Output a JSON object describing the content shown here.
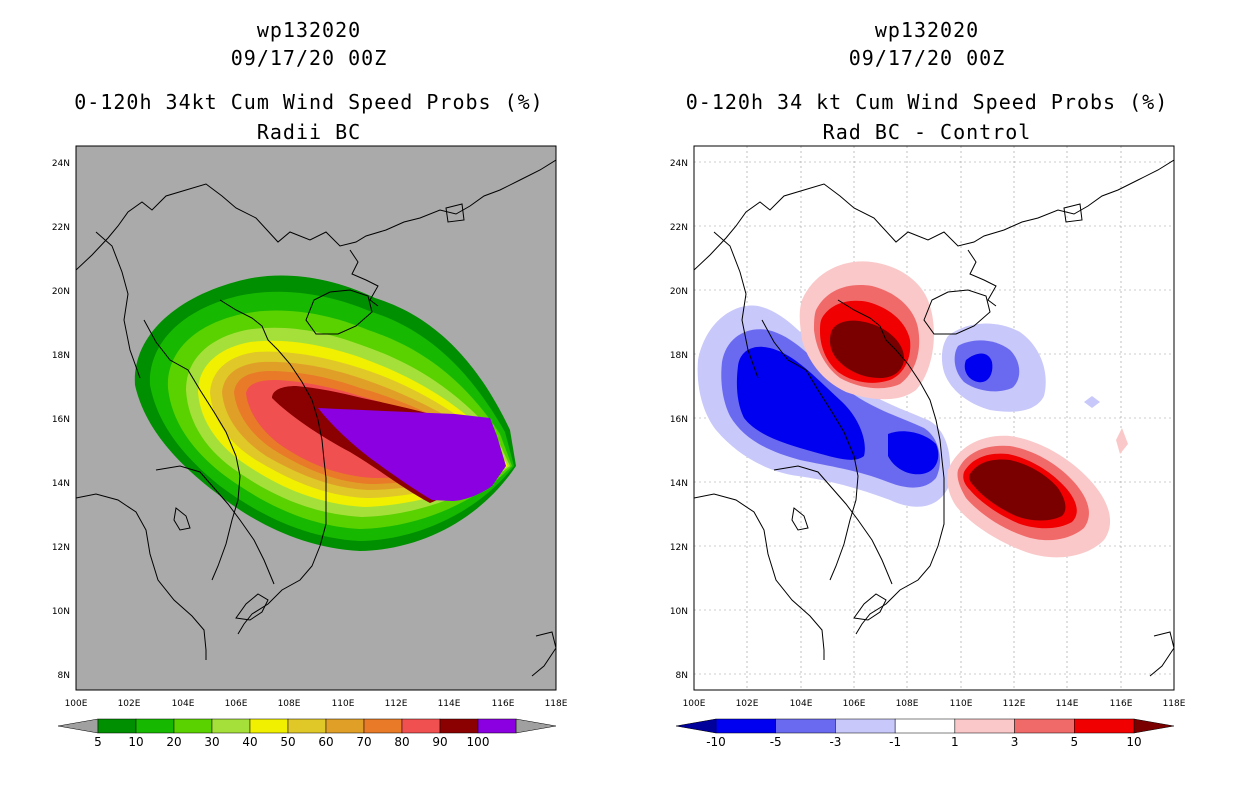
{
  "panels": [
    {
      "storm_id": "wp132020",
      "datetime": "09/17/20 00Z",
      "title": "0-120h 34kt Cum Wind Speed Probs (%)",
      "subtitle": "Radii BC",
      "colorbar": {
        "labels": [
          "5",
          "10",
          "20",
          "30",
          "40",
          "50",
          "60",
          "70",
          "80",
          "90",
          "100"
        ],
        "colors": [
          "#008f00",
          "#17b800",
          "#5ad200",
          "#a5e03a",
          "#f0f000",
          "#e0c828",
          "#e0a028",
          "#e87a28",
          "#f05050",
          "#8b0000",
          "#8a00e0"
        ],
        "under_color": "#a0a0a0",
        "over_color": "#a0a0a0"
      }
    },
    {
      "storm_id": "wp132020",
      "datetime": "09/17/20 00Z",
      "title": "0-120h 34 kt Cum Wind Speed Probs (%)",
      "subtitle": "Rad BC - Control",
      "colorbar": {
        "labels": [
          "-10",
          "-5",
          "-3",
          "-1",
          "1",
          "3",
          "5",
          "10"
        ],
        "colors": [
          "#0000f0",
          "#6a6af0",
          "#c8c8fa",
          "#ffffff",
          "#fac8c8",
          "#f06a6a",
          "#f00000"
        ],
        "under_color": "#00009a",
        "over_color": "#7a0000"
      }
    }
  ],
  "map": {
    "lon_labels": [
      "100E",
      "102E",
      "104E",
      "106E",
      "108E",
      "110E",
      "112E",
      "114E",
      "116E",
      "118E"
    ],
    "lat_labels": [
      "24N",
      "22N",
      "20N",
      "18N",
      "16N",
      "14N",
      "12N",
      "10N",
      "8N"
    ],
    "background_left": "#aaaaaa",
    "background_right": "#ffffff"
  }
}
